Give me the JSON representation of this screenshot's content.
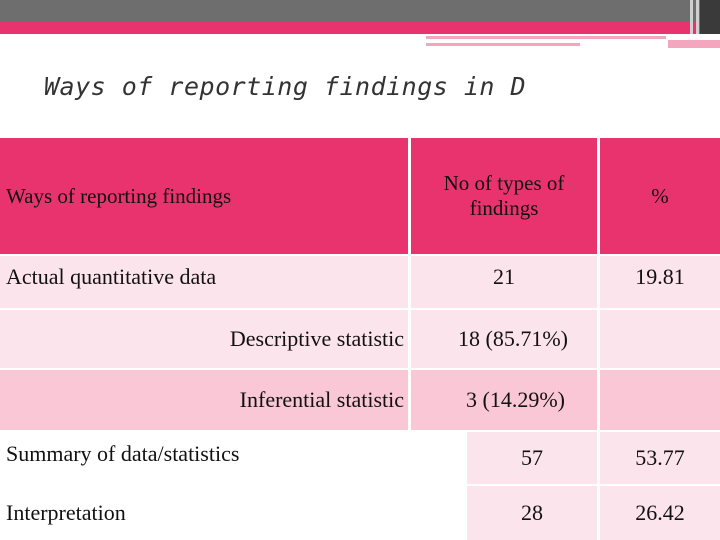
{
  "title": "Ways of reporting findings in D",
  "colors": {
    "accent": "#e8336f",
    "row_light": "#fce4ec",
    "row_mid": "#f9c7d6",
    "band_gray": "#6e6e6e"
  },
  "table": {
    "headers": [
      "Ways of reporting findings",
      "No of types of findings",
      "%"
    ],
    "rows": [
      {
        "label": "Actual quantitative data",
        "count": "21",
        "percent": "19.81"
      },
      {
        "label": "Descriptive statistic",
        "count": "18 (85.71%)",
        "percent": ""
      },
      {
        "label": "Inferential statistic",
        "count": "3 (14.29%)",
        "percent": ""
      },
      {
        "label": "Summary of data/statistics",
        "count": "57",
        "percent": "53.77"
      },
      {
        "label": "Interpretation",
        "count": "28",
        "percent": "26.42"
      }
    ]
  }
}
